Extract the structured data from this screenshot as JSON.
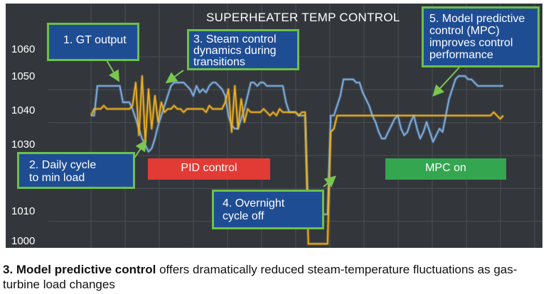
{
  "chart_data": {
    "type": "line",
    "title": "SUPERHEATER TEMP CONTROL",
    "y_ticks": [
      "1060",
      "1050",
      "1040",
      "1030",
      "1010",
      "1000"
    ],
    "ylim": [
      1000,
      1064
    ],
    "grid": true,
    "background": "#33373c",
    "x_count": 130,
    "series": [
      {
        "color": "#7fb2e6",
        "values": [
          1040,
          1040,
          1049,
          1049,
          1049,
          1049,
          1049,
          1049,
          1049,
          1049,
          1044,
          1044,
          1044,
          1042,
          1039,
          1036,
          1033,
          1031,
          1029,
          1030,
          1033,
          1037,
          1040,
          1043,
          1046,
          1049,
          1050,
          1050,
          1050,
          1050,
          1049,
          1048,
          1046,
          1049,
          1047,
          1048,
          1047,
          1049,
          1050,
          1050,
          1049,
          1048,
          1046,
          1040,
          1037,
          1036,
          1036,
          1039,
          1042,
          1046,
          1050,
          1050,
          1049,
          1050,
          1050,
          1049,
          1049,
          1049,
          1049,
          1049,
          1049,
          1044,
          1041,
          1041,
          1041,
          1040,
          1040,
          1040,
          1010,
          1010,
          1010,
          1010,
          1010,
          1010,
          1010,
          1040,
          1040,
          1043,
          1046,
          1051,
          1051,
          1051,
          1051,
          1050,
          1050,
          1047,
          1045,
          1043,
          1040,
          1038,
          1035,
          1033,
          1033,
          1035,
          1037,
          1039,
          1040,
          1036,
          1034,
          1035,
          1038,
          1040,
          1036,
          1033,
          1035,
          1038,
          1035,
          1032,
          1034,
          1036,
          1035,
          1040,
          1045,
          1048,
          1051,
          1052,
          1052,
          1052,
          1051,
          1051,
          1050,
          1049,
          1049,
          1049,
          1049,
          1049,
          1049,
          1049,
          1049,
          1049
        ]
      },
      {
        "color": "#f2b21f",
        "values": [
          1040,
          1042,
          1042,
          1042,
          1043,
          1042,
          1042,
          1042,
          1042,
          1042,
          1042,
          1042,
          1042,
          1043,
          1050,
          1034,
          1052,
          1032,
          1048,
          1036,
          1046,
          1038,
          1044,
          1041,
          1042,
          1042,
          1043,
          1042,
          1042,
          1041,
          1042,
          1042,
          1042,
          1042,
          1042,
          1042,
          1041,
          1043,
          1042,
          1042,
          1042,
          1042,
          1044,
          1048,
          1035,
          1049,
          1036,
          1045,
          1038,
          1042,
          1041,
          1041,
          1041,
          1041,
          1042,
          1041,
          1040,
          1041,
          1040,
          1042,
          1041,
          1041,
          1041,
          1041,
          1041,
          1040,
          1041,
          1041,
          1001,
          1001,
          1001,
          1001,
          1001,
          1001,
          1001,
          1035,
          1036,
          1040,
          1040,
          1040,
          1040,
          1040,
          1040,
          1040,
          1040,
          1040,
          1040,
          1040,
          1040,
          1040,
          1040,
          1040,
          1040,
          1040,
          1040,
          1040,
          1040,
          1040,
          1040,
          1040,
          1040,
          1040,
          1040,
          1040,
          1040,
          1040,
          1040,
          1040,
          1040,
          1040,
          1040,
          1040,
          1040,
          1040,
          1040,
          1040,
          1040,
          1040,
          1040,
          1040,
          1040,
          1040,
          1040,
          1040,
          1040,
          1040,
          1041,
          1040,
          1039,
          1040
        ]
      }
    ]
  },
  "callouts": {
    "gt_output": "1. GT output",
    "daily_cycle_l1": "2. Daily cycle",
    "daily_cycle_l2": "to min load",
    "steam_l1": "3. Steam control",
    "steam_l2": "dynamics during",
    "steam_l3": "transitions",
    "overnight_l1": "4. Overnight",
    "overnight_l2": "cycle off",
    "mpc_l1": "5. Model predictive",
    "mpc_l2": "control (MPC)",
    "mpc_l3": "improves control",
    "mpc_l4": "performance"
  },
  "badges": {
    "pid": {
      "label": "PID control",
      "color": "#e23b35"
    },
    "mpc": {
      "label": "MPC on",
      "color": "#33a64f"
    }
  },
  "caption": {
    "bold": "3. Model predictive control",
    "rest": " offers dramatically reduced steam-temperature fluctuations as gas-turbine load changes"
  }
}
